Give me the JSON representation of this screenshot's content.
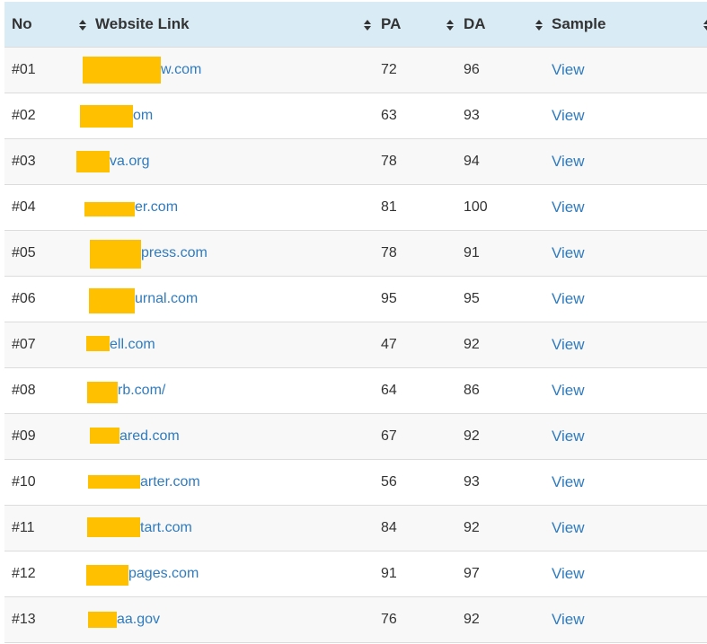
{
  "table": {
    "headers": [
      "No",
      "Website Link",
      "PA",
      "DA",
      "Sample"
    ],
    "redaction_color": "#ffc000",
    "link_color": "#2f7bbf",
    "header_bg": "#d9ebf5",
    "rows": [
      {
        "no": "#01",
        "link": "w.com",
        "pa": "72",
        "da": "96",
        "sample": "View"
      },
      {
        "no": "#02",
        "link": "om",
        "pa": "63",
        "da": "93",
        "sample": "View"
      },
      {
        "no": "#03",
        "link": "va.org",
        "pa": "78",
        "da": "94",
        "sample": "View"
      },
      {
        "no": "#04",
        "link": "er.com",
        "pa": "81",
        "da": "100",
        "sample": "View"
      },
      {
        "no": "#05",
        "link": "press.com",
        "pa": "78",
        "da": "91",
        "sample": "View"
      },
      {
        "no": "#06",
        "link": "urnal.com",
        "pa": "95",
        "da": "95",
        "sample": "View"
      },
      {
        "no": "#07",
        "link": "ell.com",
        "pa": "47",
        "da": "92",
        "sample": "View"
      },
      {
        "no": "#08",
        "link": "rb.com/",
        "pa": "64",
        "da": "86",
        "sample": "View"
      },
      {
        "no": "#09",
        "link": "ared.com",
        "pa": "67",
        "da": "92",
        "sample": "View"
      },
      {
        "no": "#10",
        "link": "arter.com",
        "pa": "56",
        "da": "93",
        "sample": "View"
      },
      {
        "no": "#11",
        "link": "tart.com",
        "pa": "84",
        "da": "92",
        "sample": "View"
      },
      {
        "no": "#12",
        "link": "pages.com",
        "pa": "91",
        "da": "97",
        "sample": "View"
      },
      {
        "no": "#13",
        "link": "aa.gov",
        "pa": "76",
        "da": "92",
        "sample": "View"
      }
    ]
  }
}
